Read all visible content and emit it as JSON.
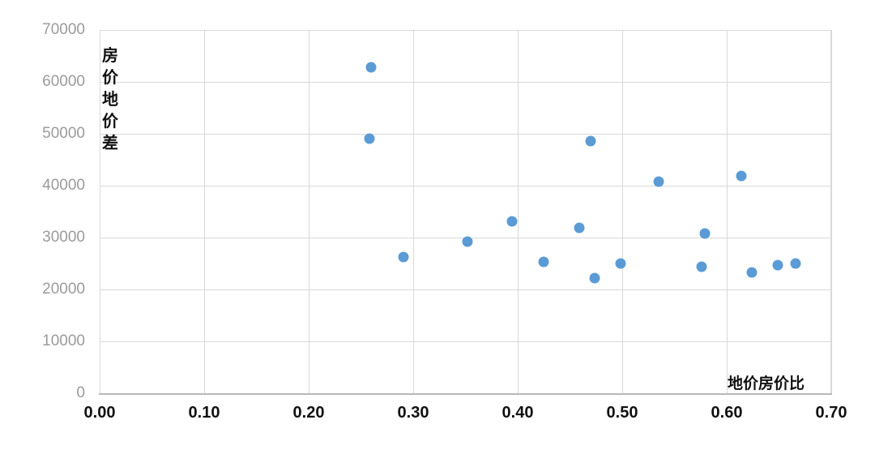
{
  "colors": {
    "point": "#5b9bd5",
    "gridline": "#d9d9d9",
    "axis_line": "#b9b9b9",
    "y_tick_text": "#9b9b9b",
    "x_tick_text": "#111111"
  },
  "chart_data": {
    "type": "scatter",
    "title": "",
    "xlabel": "地价房价比",
    "ylabel": "房价地价差",
    "xlim": [
      0.0,
      0.7
    ],
    "ylim": [
      0,
      70000
    ],
    "x_ticks": [
      "0.00",
      "0.10",
      "0.20",
      "0.30",
      "0.40",
      "0.50",
      "0.60",
      "0.70"
    ],
    "y_ticks": [
      "0",
      "10000",
      "20000",
      "30000",
      "40000",
      "50000",
      "60000",
      "70000"
    ],
    "grid": true,
    "legend": false,
    "points": [
      {
        "x": 0.259,
        "y": 63000
      },
      {
        "x": 0.257,
        "y": 49200
      },
      {
        "x": 0.29,
        "y": 26400
      },
      {
        "x": 0.351,
        "y": 29300
      },
      {
        "x": 0.394,
        "y": 33300
      },
      {
        "x": 0.424,
        "y": 25400
      },
      {
        "x": 0.458,
        "y": 32000
      },
      {
        "x": 0.469,
        "y": 48700
      },
      {
        "x": 0.473,
        "y": 22300
      },
      {
        "x": 0.498,
        "y": 25200
      },
      {
        "x": 0.534,
        "y": 41000
      },
      {
        "x": 0.575,
        "y": 24600
      },
      {
        "x": 0.578,
        "y": 31000
      },
      {
        "x": 0.613,
        "y": 42100
      },
      {
        "x": 0.623,
        "y": 23400
      },
      {
        "x": 0.648,
        "y": 24900
      },
      {
        "x": 0.665,
        "y": 25100
      }
    ]
  }
}
